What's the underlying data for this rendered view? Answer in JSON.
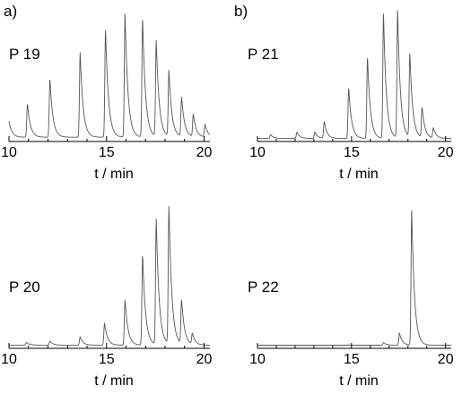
{
  "panel_letters": [
    "a)",
    "b)"
  ],
  "chart_data": [
    {
      "type": "line",
      "label": "P 19",
      "xlabel": "t / min",
      "xlim": [
        10,
        20.3
      ],
      "x_ticks": [
        10,
        15,
        20
      ],
      "baseline": 0.02,
      "peaks": [
        {
          "t": 10.0,
          "h": 0.13
        },
        {
          "t": 10.95,
          "h": 0.27
        },
        {
          "t": 12.1,
          "h": 0.47
        },
        {
          "t": 13.65,
          "h": 0.68
        },
        {
          "t": 14.95,
          "h": 0.87
        },
        {
          "t": 15.95,
          "h": 1.0
        },
        {
          "t": 16.85,
          "h": 0.96
        },
        {
          "t": 17.55,
          "h": 0.77
        },
        {
          "t": 18.2,
          "h": 0.53
        },
        {
          "t": 18.85,
          "h": 0.32
        },
        {
          "t": 19.45,
          "h": 0.18
        },
        {
          "t": 20.05,
          "h": 0.1
        }
      ]
    },
    {
      "type": "line",
      "label": "P 21",
      "xlabel": "t / min",
      "xlim": [
        10,
        20.3
      ],
      "x_ticks": [
        10,
        15,
        20
      ],
      "baseline": 0.01,
      "peaks": [
        {
          "t": 10.7,
          "h": 0.03
        },
        {
          "t": 12.1,
          "h": 0.05
        },
        {
          "t": 13.05,
          "h": 0.05
        },
        {
          "t": 13.55,
          "h": 0.13
        },
        {
          "t": 14.85,
          "h": 0.4
        },
        {
          "t": 15.85,
          "h": 0.64
        },
        {
          "t": 16.7,
          "h": 0.98
        },
        {
          "t": 17.45,
          "h": 1.0
        },
        {
          "t": 18.1,
          "h": 0.66
        },
        {
          "t": 18.75,
          "h": 0.24
        },
        {
          "t": 19.35,
          "h": 0.08
        }
      ]
    },
    {
      "type": "line",
      "label": "P 20",
      "xlabel": "t / min",
      "xlim": [
        10,
        20.3
      ],
      "x_ticks": [
        10,
        15,
        20
      ],
      "baseline": 0.01,
      "peaks": [
        {
          "t": 10.9,
          "h": 0.02
        },
        {
          "t": 12.1,
          "h": 0.03
        },
        {
          "t": 13.65,
          "h": 0.06
        },
        {
          "t": 14.9,
          "h": 0.16
        },
        {
          "t": 15.95,
          "h": 0.33
        },
        {
          "t": 16.85,
          "h": 0.66
        },
        {
          "t": 17.55,
          "h": 0.91
        },
        {
          "t": 18.2,
          "h": 1.0
        },
        {
          "t": 18.85,
          "h": 0.32
        },
        {
          "t": 19.4,
          "h": 0.08
        }
      ]
    },
    {
      "type": "line",
      "label": "P 22",
      "xlabel": "t / min",
      "xlim": [
        10,
        20.3
      ],
      "x_ticks": [
        10,
        15,
        20
      ],
      "baseline": 0.01,
      "peaks": [
        {
          "t": 16.7,
          "h": 0.02
        },
        {
          "t": 17.55,
          "h": 0.09
        },
        {
          "t": 18.2,
          "h": 1.0
        }
      ]
    }
  ]
}
